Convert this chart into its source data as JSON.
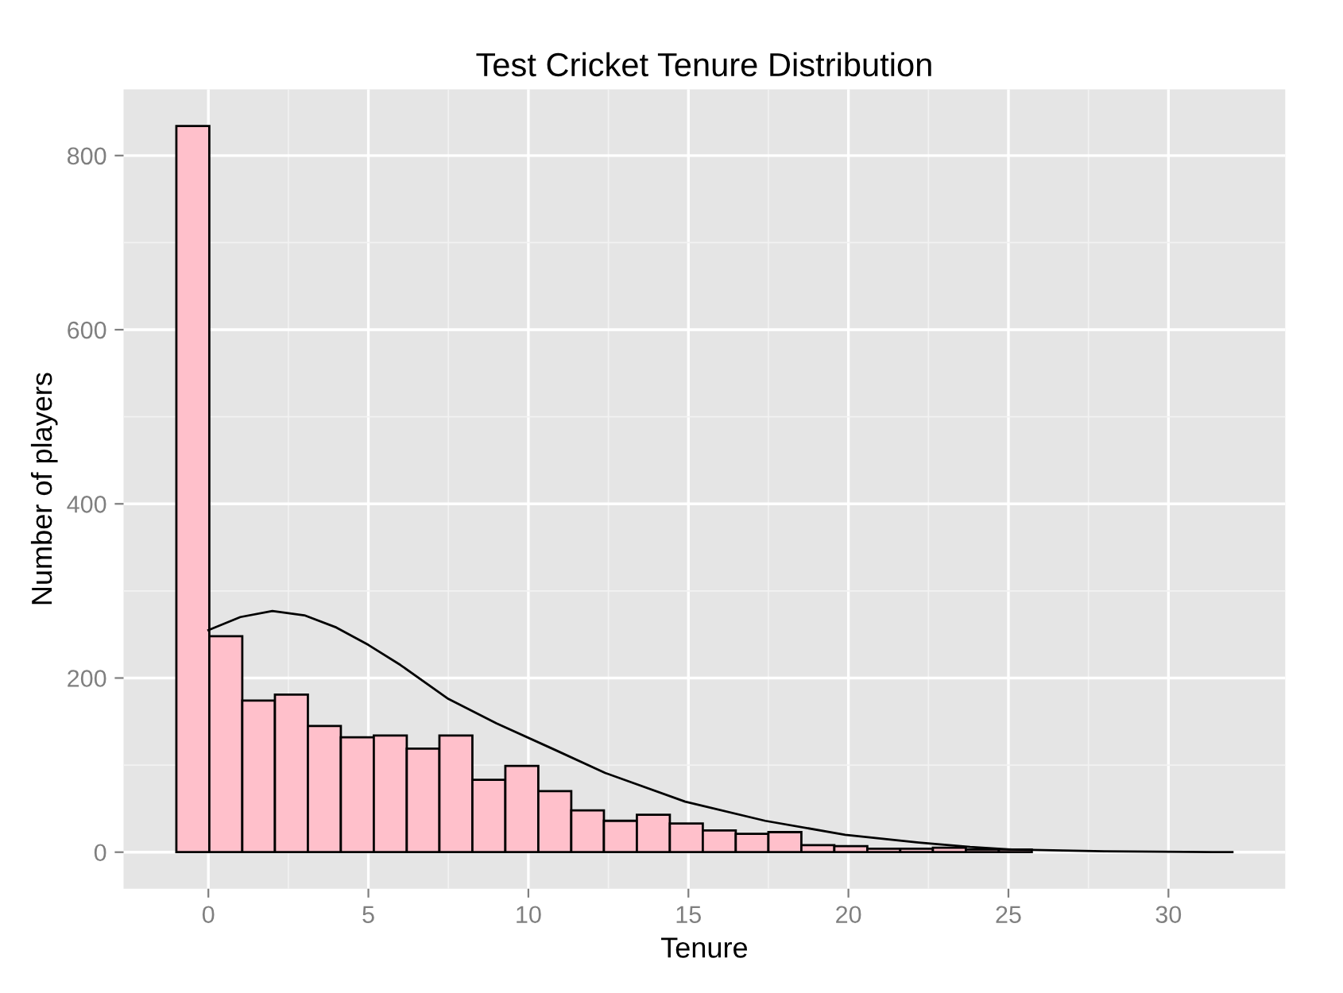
{
  "chart_data": {
    "type": "histogram",
    "title": "Test Cricket Tenure Distribution",
    "xlabel": "Tenure",
    "ylabel": "Number of players",
    "bins": [
      -1,
      0.03,
      1.06,
      2.08,
      3.11,
      4.14,
      5.17,
      6.2,
      7.22,
      8.25,
      9.28,
      10.31,
      11.34,
      12.36,
      13.39,
      14.42,
      15.45,
      16.48,
      17.5,
      18.53,
      19.56,
      20.59,
      21.62,
      22.64,
      23.67,
      24.7,
      25.73,
      26.76,
      27.78,
      28.81,
      29.84,
      30.87
    ],
    "values": [
      834,
      248,
      174,
      181,
      145,
      132,
      134,
      119,
      134,
      83,
      99,
      70,
      48,
      36,
      43,
      33,
      25,
      21,
      23,
      8,
      7,
      4,
      4,
      5,
      3,
      3,
      null,
      null,
      null,
      null,
      null
    ],
    "color": "#ffc0cb",
    "series": [
      {
        "type": "line",
        "color": "#000000",
        "x": [
          0,
          1,
          2,
          3,
          4,
          5,
          6,
          7.5,
          9,
          10.8,
          12.4,
          14.9,
          17.4,
          19.9,
          22.2,
          23.8,
          25.1,
          28,
          32
        ],
        "values": [
          255,
          270,
          277,
          272,
          258,
          238,
          215,
          176,
          148,
          118,
          91,
          58,
          36,
          20,
          11,
          6,
          3,
          1,
          0
        ]
      }
    ],
    "xlim": [
      -2.65,
      33.65
    ],
    "ylim": [
      -42,
      876
    ],
    "xticks": [
      0,
      5,
      10,
      15,
      20,
      25,
      30
    ],
    "yticks": [
      0,
      200,
      400,
      600,
      800
    ],
    "grid": true
  }
}
